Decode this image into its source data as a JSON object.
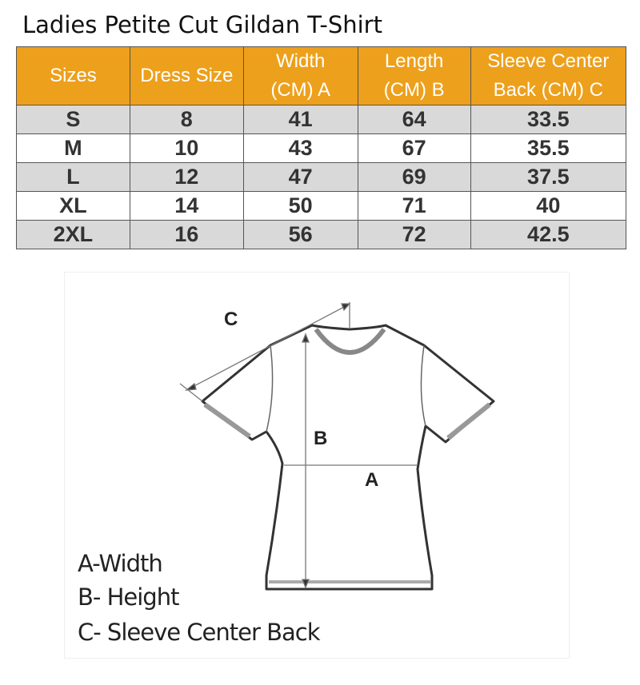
{
  "title": "Ladies Petite Cut Gildan T-Shirt",
  "table": {
    "headers": [
      "Sizes",
      "Dress Size",
      "Width\n(CM) A",
      "Length\n(CM) B",
      "Sleeve Center\nBack (CM) C"
    ],
    "rows": [
      [
        "S",
        "8",
        "41",
        "64",
        "33.5"
      ],
      [
        "M",
        "10",
        "43",
        "67",
        "35.5"
      ],
      [
        "L",
        "12",
        "47",
        "69",
        "37.5"
      ],
      [
        "XL",
        "14",
        "50",
        "71",
        "40"
      ],
      [
        "2XL",
        "16",
        "56",
        "72",
        "42.5"
      ]
    ]
  },
  "diagram": {
    "labels": {
      "a": "A",
      "b": "B",
      "c": "C"
    },
    "legend": [
      "A-Width",
      "B- Height",
      "C- Sleeve Center Back"
    ]
  },
  "colors": {
    "header": "#eda01c",
    "stripe": "#d9d9d9"
  }
}
